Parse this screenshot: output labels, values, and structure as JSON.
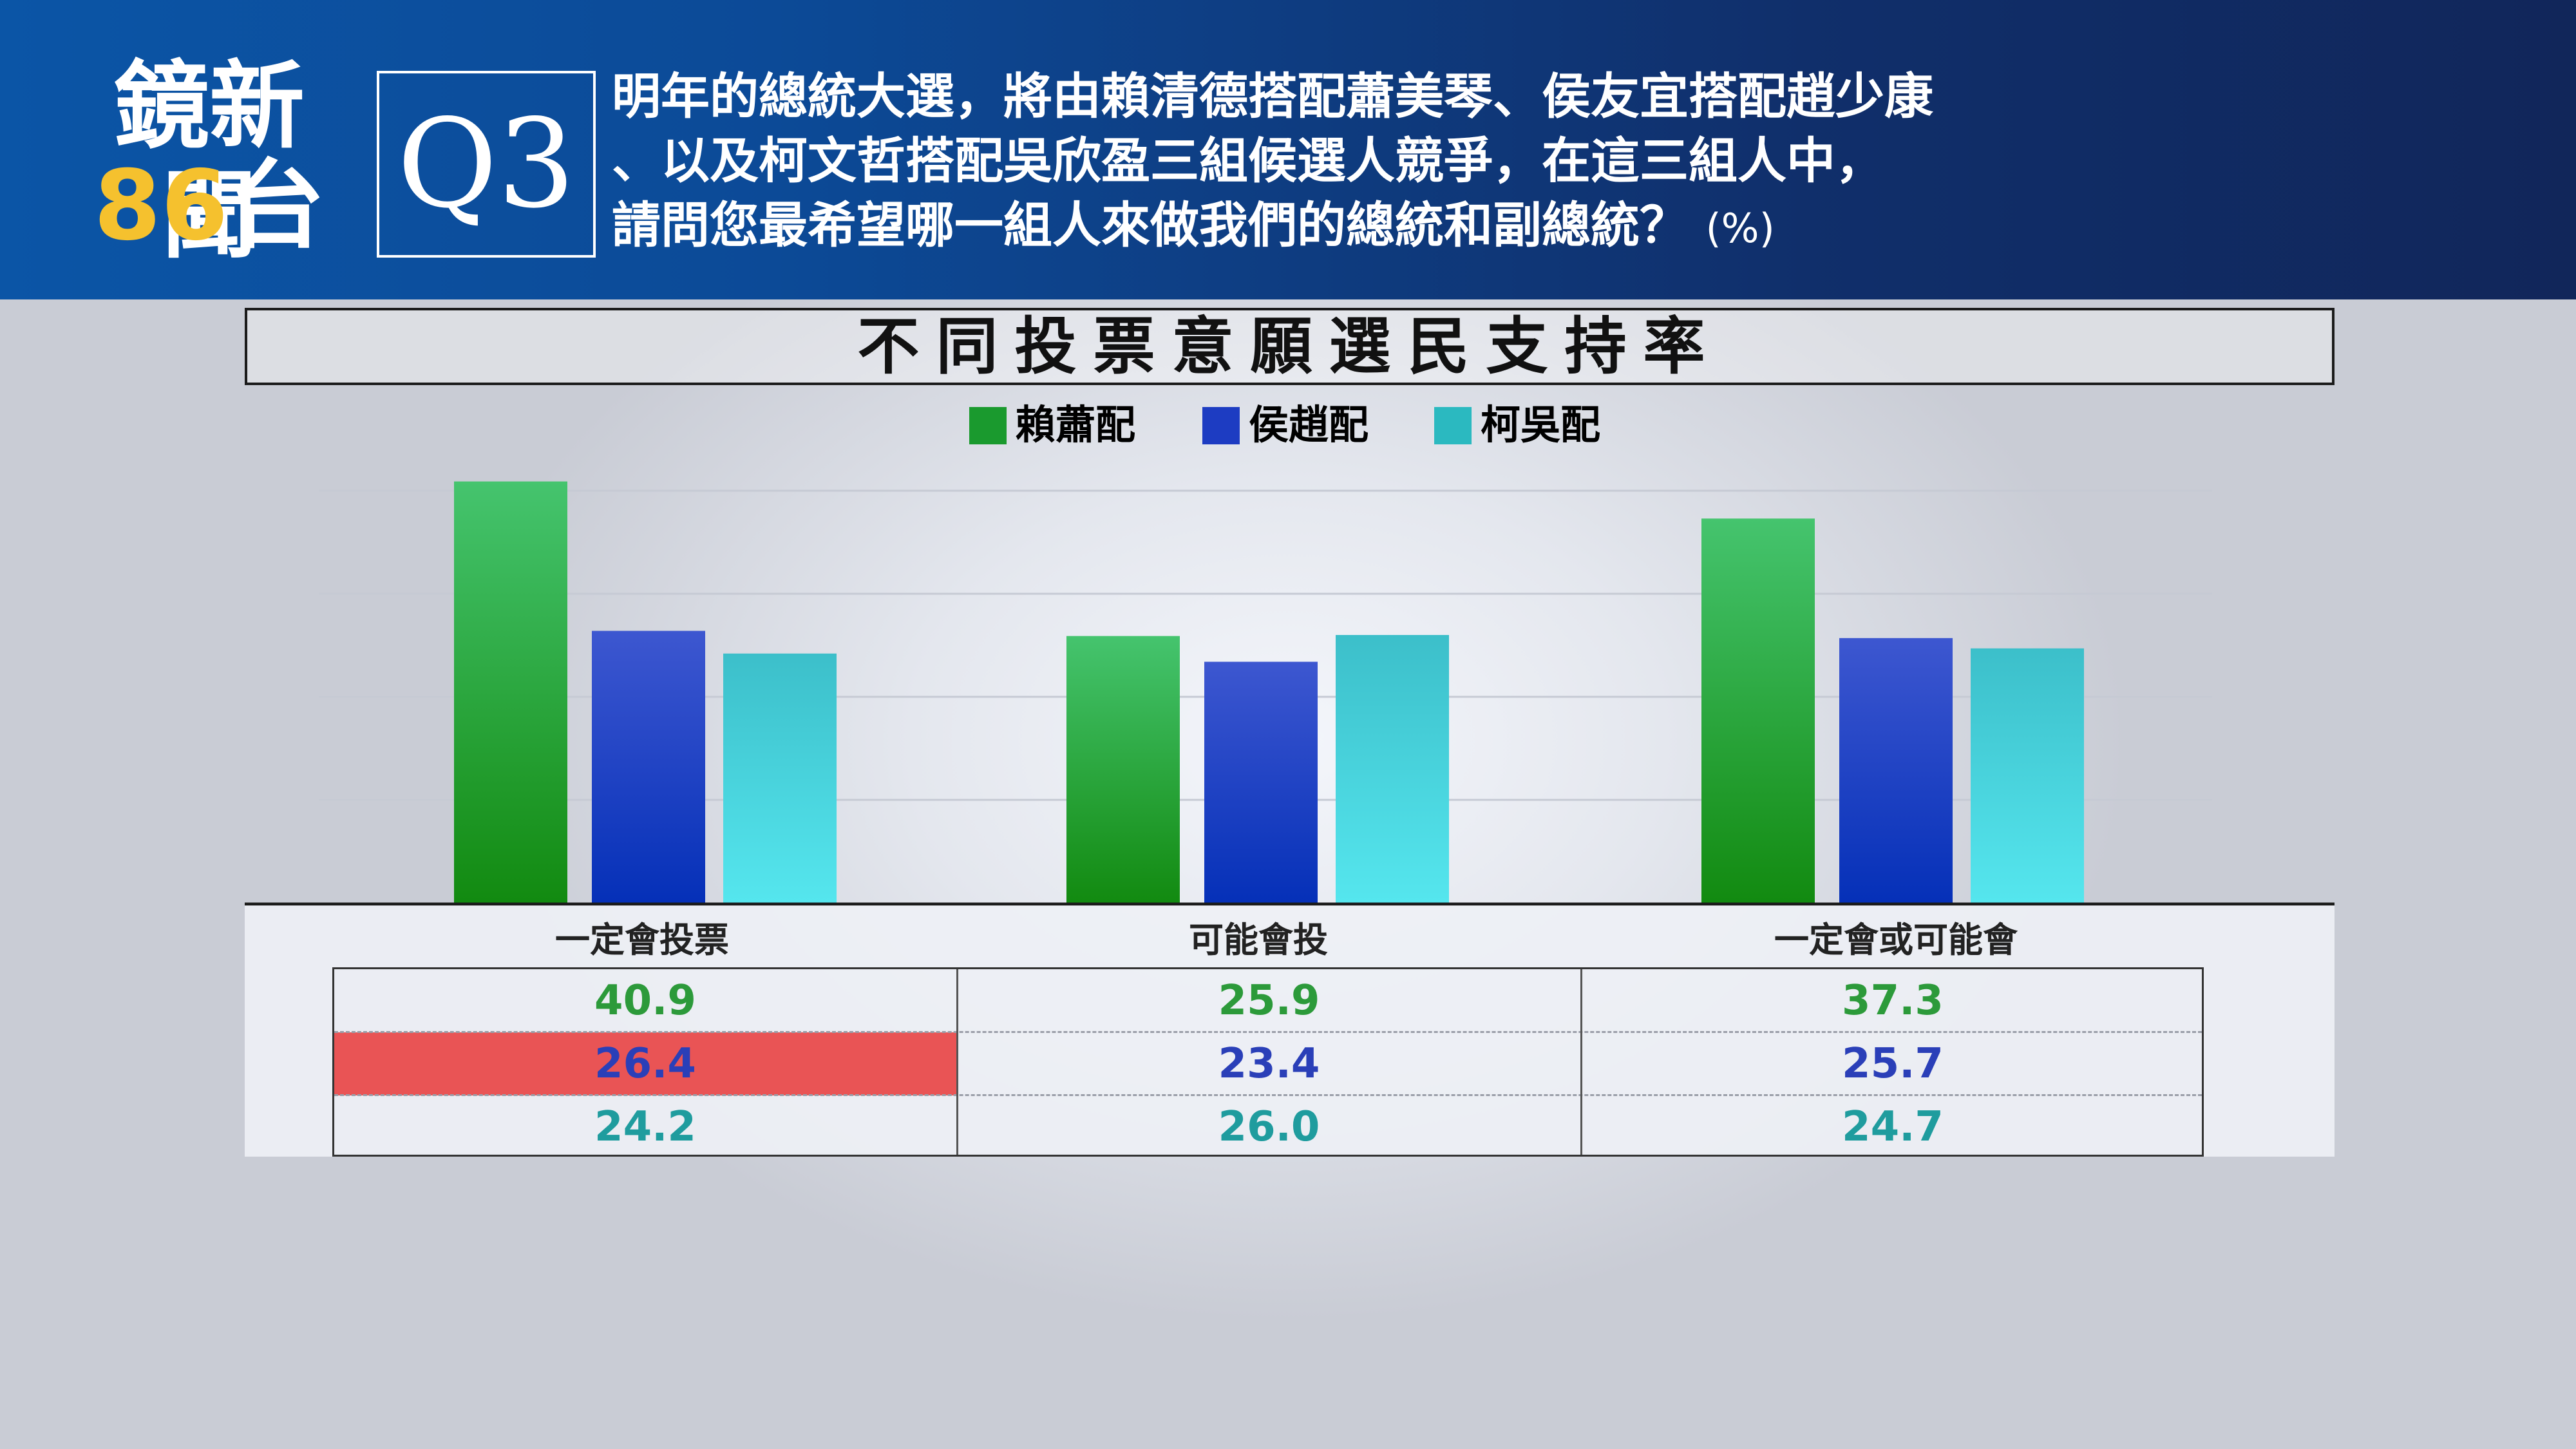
{
  "brand": {
    "name": "鏡新聞",
    "channel_number": "86",
    "channel_suffix": "台"
  },
  "question": {
    "label": "Q3",
    "lines": [
      "明年的總統大選，將由賴清德搭配蕭美琴、侯友宜搭配趙少康",
      "、以及柯文哲搭配吳欣盈三組候選人競爭，在這三組人中，",
      "請問您最希望哪一組人來做我們的總統和副總統？"
    ],
    "unit": "(%)"
  },
  "colors": {
    "green": "#1a9a2e",
    "blue": "#1d3cc2",
    "teal": "#2bb9c0",
    "green_text": "#2c9a3a",
    "blue_text": "#2a3fb8",
    "teal_text": "#1f9c9e",
    "highlight": "#e95455"
  },
  "chart_data": {
    "type": "bar",
    "title": "不同投票意願選民支持率",
    "categories": [
      "一定會投票",
      "可能會投",
      "一定會或可能會"
    ],
    "series": [
      {
        "name": "賴蕭配",
        "values": [
          40.9,
          25.9,
          37.3
        ]
      },
      {
        "name": "侯趙配",
        "values": [
          26.4,
          23.4,
          25.7
        ]
      },
      {
        "name": "柯吳配",
        "values": [
          24.2,
          26.0,
          24.7
        ]
      }
    ],
    "value_labels": [
      [
        "40.9",
        "25.9",
        "37.3"
      ],
      [
        "26.4",
        "23.4",
        "25.7"
      ],
      [
        "24.2",
        "26.0",
        "24.7"
      ]
    ],
    "highlighted_cell": {
      "series": 1,
      "category": 0
    },
    "ylim": [
      0,
      40
    ],
    "grid": true,
    "legend_position": "top-center"
  }
}
